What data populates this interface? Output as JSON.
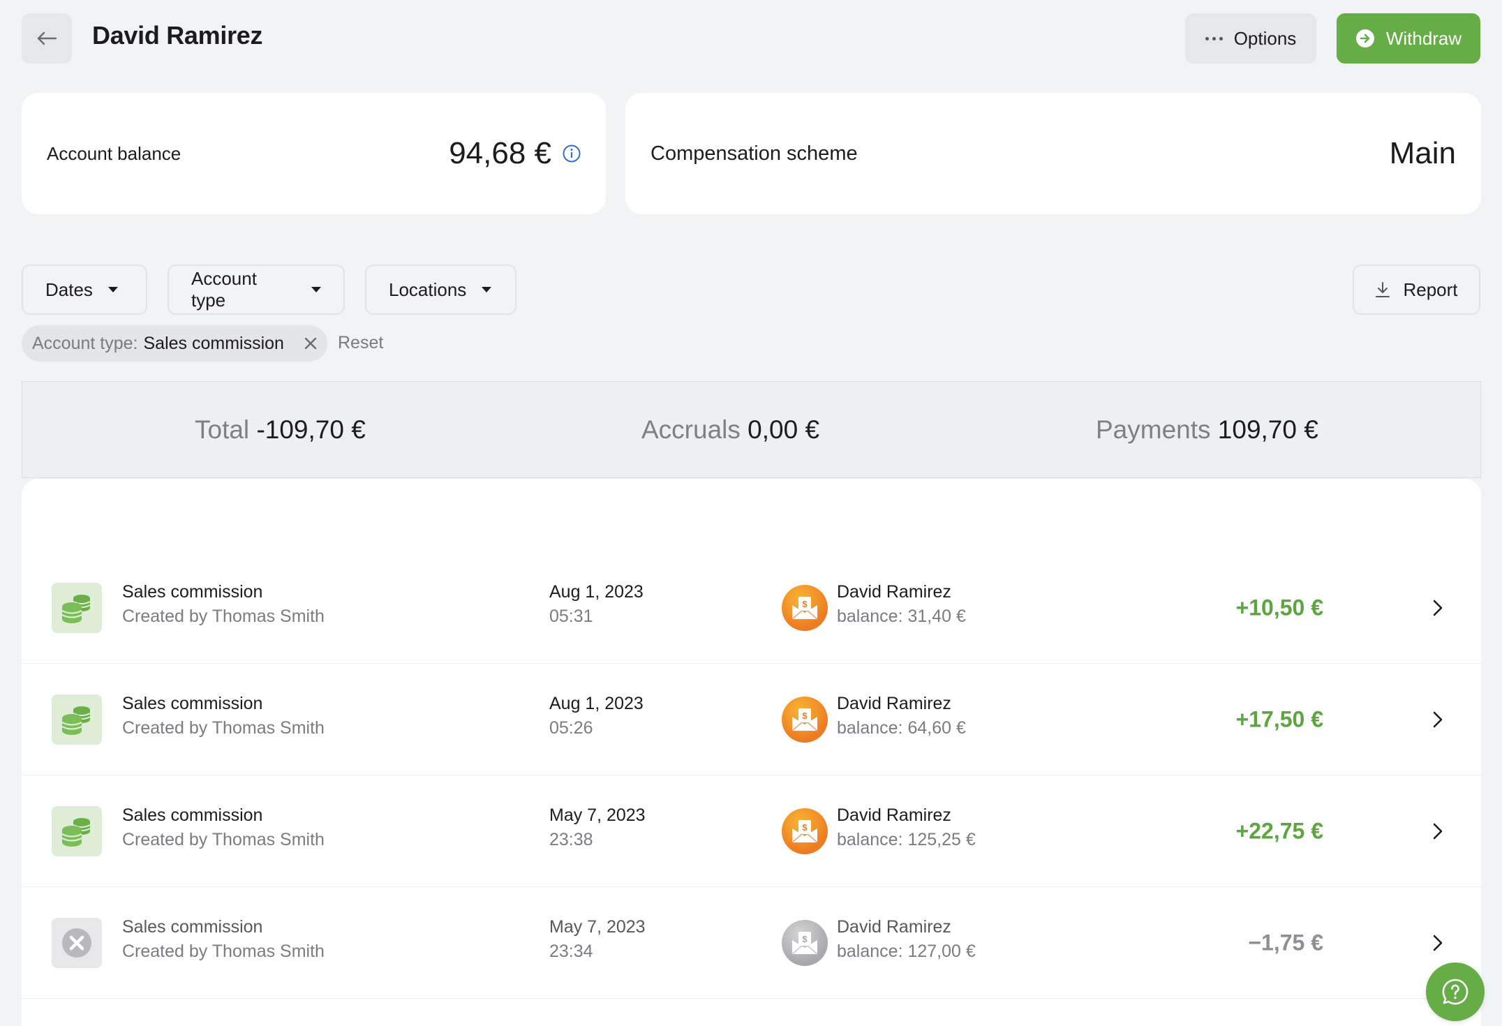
{
  "header": {
    "title": "David Ramirez",
    "options_label": "Options",
    "withdraw_label": "Withdraw"
  },
  "balance_card": {
    "label": "Account balance",
    "value": "94,68 €"
  },
  "scheme_card": {
    "label": "Compensation scheme",
    "value": "Main"
  },
  "filters": {
    "dates": "Dates",
    "account_type": "Account type",
    "locations": "Locations",
    "report": "Report"
  },
  "active_filter": {
    "key": "Account type:",
    "value": "Sales commission",
    "reset_label": "Reset"
  },
  "totals": {
    "total_label": "Total",
    "total_value": "-109,70 €",
    "accruals_label": "Accruals",
    "accruals_value": "0,00 €",
    "payments_label": "Payments",
    "payments_value": "109,70 €"
  },
  "transactions": [
    {
      "title": "Sales commission",
      "creator": "Created by Thomas Smith",
      "date": "Aug 1, 2023",
      "time": "05:31",
      "person": "David Ramirez",
      "balance": "balance: 31,40 €",
      "amount": "+10,50 €",
      "status": "active"
    },
    {
      "title": "Sales commission",
      "creator": "Created by Thomas Smith",
      "date": "Aug 1, 2023",
      "time": "05:26",
      "person": "David Ramirez",
      "balance": "balance: 64,60 €",
      "amount": "+17,50 €",
      "status": "active"
    },
    {
      "title": "Sales commission",
      "creator": "Created by Thomas Smith",
      "date": "May 7, 2023",
      "time": "23:38",
      "person": "David Ramirez",
      "balance": "balance: 125,25 €",
      "amount": "+22,75 €",
      "status": "active"
    },
    {
      "title": "Sales commission",
      "creator": "Created by Thomas Smith",
      "date": "May 7, 2023",
      "time": "23:34",
      "person": "David Ramirez",
      "balance": "balance: 127,00 €",
      "amount": "−1,75 €",
      "status": "cancelled"
    }
  ],
  "icons": {
    "back": "arrow-left-icon",
    "options": "dots-icon",
    "withdraw": "arrow-circle-right-icon",
    "info": "info-icon",
    "report": "download-icon",
    "chip_close": "close-icon",
    "row_active": "coins-icon",
    "row_cancelled": "x-circle-icon",
    "avatar": "money-envelope-icon",
    "row_chevron": "chevron-right-icon",
    "help": "chat-question-icon"
  },
  "colors": {
    "accent_green": "#66ad47",
    "amount_positive": "#5ea43f",
    "amount_cancelled": "#8e8f93",
    "avatar_orange": "#ee7b21",
    "info_blue": "#2f6fd6"
  }
}
